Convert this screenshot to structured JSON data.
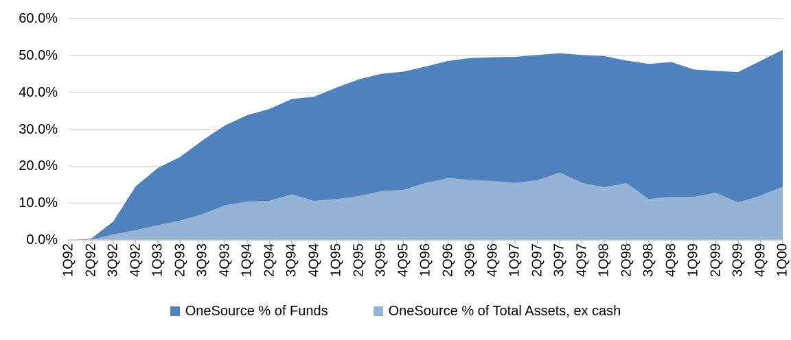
{
  "chart_data": {
    "type": "area",
    "style": "overlapping-areas-from-zero (not stacked)",
    "title": "",
    "xlabel": "",
    "ylabel": "",
    "ylim": [
      0,
      60
    ],
    "ytick_step": 10,
    "ytick_labels_top_to_bottom": [
      "60.0%",
      "50.0%",
      "40.0%",
      "30.0%",
      "20.0%",
      "10.0%",
      "0.0%"
    ],
    "grid": "horizontal",
    "legend_position": "bottom-center",
    "categories": [
      "1Q92",
      "2Q92",
      "3Q92",
      "4Q92",
      "1Q93",
      "2Q93",
      "3Q93",
      "4Q93",
      "1Q94",
      "2Q94",
      "3Q94",
      "4Q94",
      "1Q95",
      "2Q95",
      "3Q95",
      "4Q95",
      "1Q96",
      "2Q96",
      "3Q96",
      "4Q96",
      "1Q97",
      "2Q97",
      "3Q97",
      "4Q97",
      "1Q98",
      "2Q98",
      "3Q98",
      "4Q98",
      "1Q99",
      "2Q99",
      "3Q99",
      "4Q99",
      "1Q00"
    ],
    "series": [
      {
        "name": "OneSource % of Funds",
        "color": "#4F81BD",
        "values": [
          0.0,
          0.3,
          5.0,
          14.5,
          19.5,
          22.5,
          27.0,
          31.0,
          33.8,
          35.5,
          38.2,
          38.8,
          41.3,
          43.5,
          45.0,
          45.6,
          47.0,
          48.5,
          49.3,
          49.5,
          49.6,
          50.1,
          50.6,
          50.1,
          49.8,
          48.6,
          47.7,
          48.2,
          46.2,
          45.8,
          45.5,
          48.5,
          51.5
        ]
      },
      {
        "name": "OneSource % of Total Assets, ex cash",
        "color": "#95B3D7",
        "values": [
          0.0,
          0.1,
          1.5,
          2.7,
          4.0,
          5.3,
          7.0,
          9.4,
          10.4,
          10.6,
          12.4,
          10.6,
          11.1,
          11.9,
          13.2,
          13.6,
          15.5,
          16.8,
          16.3,
          16.0,
          15.5,
          16.2,
          18.3,
          15.5,
          14.3,
          15.4,
          11.1,
          11.7,
          11.7,
          12.8,
          10.2,
          12.0,
          14.5
        ]
      }
    ],
    "axis_colors": {
      "gridline": "#D9D9D9",
      "axis_line": "#BFBFBF",
      "tick": "#BFBFBF",
      "label": "#000000"
    }
  }
}
